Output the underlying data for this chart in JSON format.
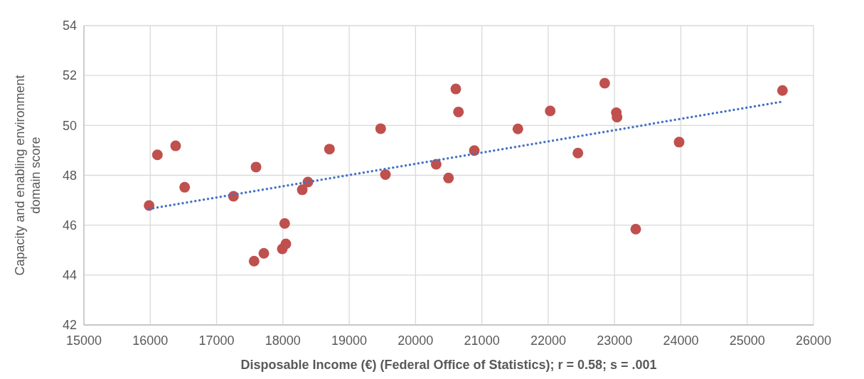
{
  "chart_data": {
    "type": "scatter",
    "xlabel": "Disposable Income (€) (Federal Office of Statistics); r = 0.58; s = .001",
    "ylabel": "Capacity and enabling environment domain score",
    "xlim": [
      15000,
      26000
    ],
    "xticks": [
      15000,
      16000,
      17000,
      18000,
      19000,
      20000,
      21000,
      22000,
      23000,
      24000,
      25000,
      26000
    ],
    "ylim": [
      42,
      54
    ],
    "yticks": [
      42,
      44,
      46,
      48,
      50,
      52,
      54
    ],
    "grid": true,
    "series": [
      {
        "color": "#c0504d",
        "marker": "circle",
        "x": [
          15983,
          16108,
          16383,
          16519,
          17255,
          17595,
          17566,
          17713,
          17991,
          18045,
          18027,
          18292,
          18377,
          18702,
          19474,
          19546,
          20311,
          20497,
          20607,
          20647,
          20886,
          21543,
          22030,
          22448,
          22852,
          23027,
          23038,
          23320,
          23974,
          25532
        ],
        "values": [
          46.79,
          48.82,
          49.18,
          47.52,
          47.16,
          48.33,
          44.56,
          44.87,
          45.05,
          45.25,
          46.07,
          47.42,
          47.73,
          49.05,
          49.87,
          48.03,
          48.44,
          47.89,
          51.46,
          50.54,
          48.99,
          49.86,
          50.58,
          48.89,
          51.69,
          50.51,
          50.33,
          45.84,
          49.33,
          51.4
        ]
      },
      {
        "type": "line",
        "color": "#4472c4",
        "line_style": "dotted",
        "x": [
          15983,
          25532
        ],
        "values": [
          46.65,
          50.95
        ]
      }
    ]
  }
}
